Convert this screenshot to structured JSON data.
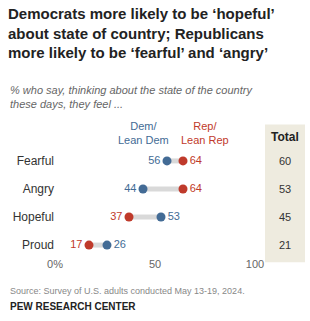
{
  "chart_data": {
    "type": "dot",
    "title": "Democrats more likely to be ‘hopeful’ about state of country; Republicans more likely to be ‘fearful’ and ‘angry’",
    "subtitle": "% who say, thinking about the state of the country these days, they feel ...",
    "categories": [
      "Fearful",
      "Angry",
      "Hopeful",
      "Proud"
    ],
    "series": [
      {
        "name": "Dem/ Lean Dem",
        "color": "#436b95",
        "values": [
          56,
          44,
          53,
          26
        ]
      },
      {
        "name": "Rep/ Lean Rep",
        "color": "#bf3a2b",
        "values": [
          64,
          64,
          37,
          17
        ]
      }
    ],
    "total": {
      "name": "Total",
      "values": [
        60,
        53,
        45,
        21
      ]
    },
    "xlim": [
      0,
      100
    ],
    "xticks": [
      {
        "value": 0,
        "label": "0%"
      },
      50,
      100
    ],
    "grid": false,
    "data_labels": true,
    "source": "Source: Survey of U.S. adults conducted May 13-19, 2024.",
    "credit": "PEW RESEARCH CENTER"
  }
}
